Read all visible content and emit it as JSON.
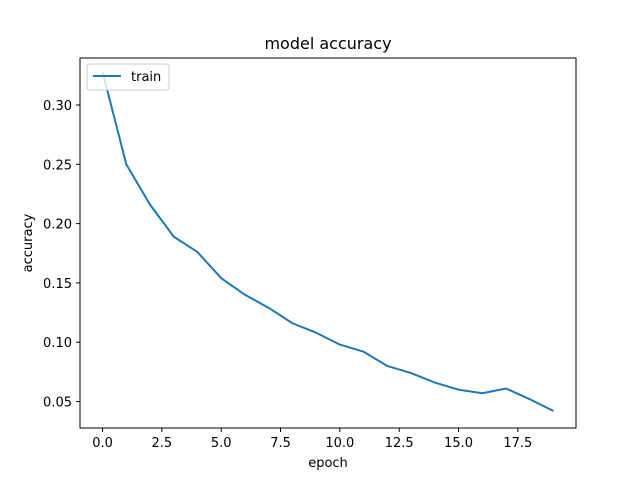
{
  "chart_data": {
    "type": "line",
    "title": "model accuracy",
    "xlabel": "epoch",
    "ylabel": "accuracy",
    "xlim": [
      -0.95,
      19.95
    ],
    "ylim": [
      0.0277,
      0.3396
    ],
    "xticks": [
      0,
      2.5,
      5,
      7.5,
      10,
      12.5,
      15,
      17.5
    ],
    "xtick_labels": [
      "0.0",
      "2.5",
      "5.0",
      "7.5",
      "10.0",
      "12.5",
      "15.0",
      "17.5"
    ],
    "yticks": [
      0.05,
      0.1,
      0.15,
      0.2,
      0.25,
      0.3
    ],
    "ytick_labels": [
      "0.05",
      "0.10",
      "0.15",
      "0.20",
      "0.25",
      "0.30"
    ],
    "grid": false,
    "legend_position": "upper-left",
    "series": [
      {
        "name": "train",
        "color": "#1f77b4",
        "x": [
          0,
          1,
          2,
          3,
          4,
          5,
          6,
          7,
          8,
          9,
          10,
          11,
          12,
          13,
          14,
          15,
          16,
          17,
          18,
          19
        ],
        "values": [
          0.328,
          0.25,
          0.216,
          0.189,
          0.176,
          0.154,
          0.14,
          0.129,
          0.116,
          0.108,
          0.098,
          0.092,
          0.08,
          0.074,
          0.066,
          0.06,
          0.057,
          0.061,
          0.052,
          0.042
        ]
      }
    ]
  }
}
